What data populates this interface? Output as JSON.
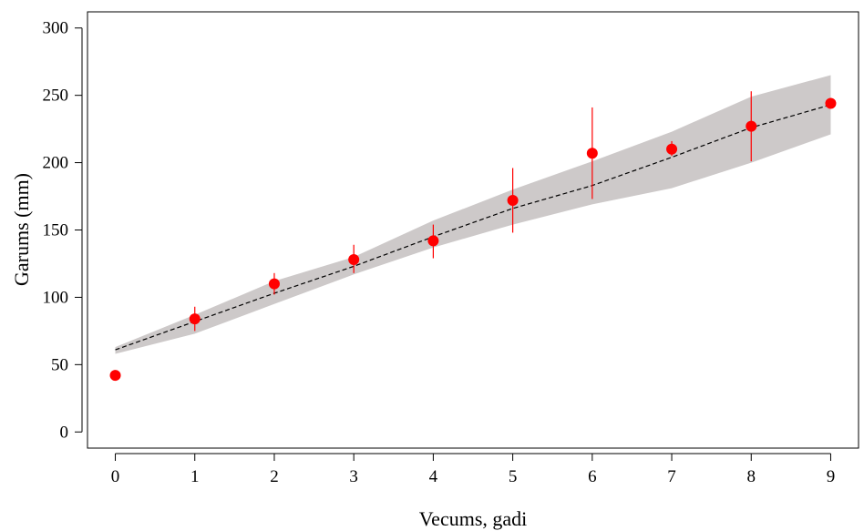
{
  "chart_data": {
    "type": "scatter",
    "title": "",
    "xlabel": "Vecums, gadi",
    "ylabel": "Garums  (mm)",
    "xlim": [
      -0.35,
      9.35
    ],
    "ylim": [
      -12,
      312
    ],
    "xticks": [
      0,
      1,
      2,
      3,
      4,
      5,
      6,
      7,
      8,
      9
    ],
    "yticks": [
      0,
      50,
      100,
      150,
      200,
      250,
      300
    ],
    "grid": false,
    "colors": {
      "points": "#ff0000",
      "errorbars": "#ff0000",
      "band": "#cdc9c9",
      "fit": "#000000"
    },
    "observed": {
      "x": [
        0,
        1,
        2,
        3,
        4,
        5,
        6,
        7,
        8,
        9
      ],
      "y": [
        42,
        84,
        110,
        128,
        142,
        172,
        207,
        210,
        227,
        244
      ],
      "err_low": [
        null,
        75,
        102,
        118,
        129,
        148,
        173,
        205,
        201,
        null
      ],
      "err_high": [
        null,
        93,
        118,
        139,
        154,
        196,
        241,
        216,
        253,
        null
      ]
    },
    "fit": {
      "x": [
        0,
        1,
        2,
        3,
        4,
        5,
        6,
        7,
        8,
        9
      ],
      "y": [
        61,
        82,
        103,
        123,
        145,
        166,
        183,
        204,
        226,
        243
      ]
    },
    "band": {
      "x": [
        0,
        1,
        2,
        3,
        4,
        5,
        6,
        7,
        8,
        9
      ],
      "lower": [
        58,
        73,
        95,
        117,
        137,
        154,
        169,
        181,
        200,
        221
      ],
      "upper": [
        63,
        87,
        112,
        130,
        157,
        180,
        201,
        223,
        249,
        265
      ]
    }
  }
}
